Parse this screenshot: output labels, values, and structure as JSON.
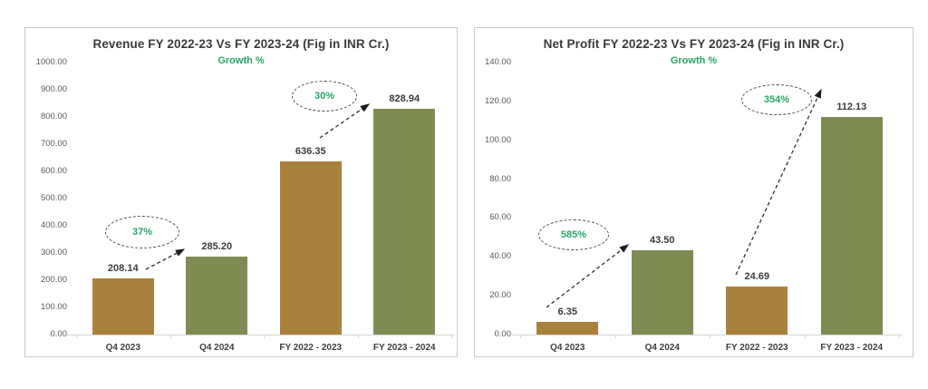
{
  "chart_data": [
    {
      "type": "bar",
      "title": "Revenue FY 2022-23 Vs FY 2023-24 (Fig in INR Cr.)",
      "legend": "Growth %",
      "legend_position": "top-center",
      "grid": false,
      "categories": [
        "Q4 2023",
        "Q4 2024",
        "FY 2022 - 2023",
        "FY 2023 - 2024"
      ],
      "values": [
        208.14,
        285.2,
        636.35,
        828.94
      ],
      "value_labels": [
        "208.14",
        "285.20",
        "636.35",
        "828.94"
      ],
      "bar_colors": [
        "#A8813E",
        "#7E8C53",
        "#A8813E",
        "#7E8C53"
      ],
      "xlabel": "",
      "ylabel": "",
      "ylim": [
        0,
        1000
      ],
      "ytick_step": 100,
      "ytick_labels": [
        "1000.00",
        "900.00",
        "800.00",
        "700.00",
        "600.00",
        "500.00",
        "400.00",
        "300.00",
        "200.00",
        "100.00",
        "0.00"
      ],
      "growth": [
        {
          "label": "37%",
          "from": "Q4 2023",
          "to": "Q4 2024"
        },
        {
          "label": "30%",
          "from": "FY 2022 - 2023",
          "to": "FY 2023 - 2024"
        }
      ]
    },
    {
      "type": "bar",
      "title": "Net Profit FY 2022-23 Vs FY 2023-24 (Fig in INR Cr.)",
      "legend": "Growth %",
      "legend_position": "top-center",
      "grid": false,
      "categories": [
        "Q4 2023",
        "Q4 2024",
        "FY 2022 - 2023",
        "FY 2023 - 2024"
      ],
      "values": [
        6.35,
        43.5,
        24.69,
        112.13
      ],
      "value_labels": [
        "6.35",
        "43.50",
        "24.69",
        "112.13"
      ],
      "bar_colors": [
        "#A8813E",
        "#7E8C53",
        "#A8813E",
        "#7E8C53"
      ],
      "xlabel": "",
      "ylabel": "",
      "ylim": [
        0,
        140
      ],
      "ytick_step": 20,
      "ytick_labels": [
        "140.00",
        "120.00",
        "100.00",
        "80.00",
        "60.00",
        "40.00",
        "20.00",
        "0.00"
      ],
      "growth": [
        {
          "label": "585%",
          "from": "Q4 2023",
          "to": "Q4 2024"
        },
        {
          "label": "354%",
          "from": "FY 2022 - 2023",
          "to": "FY 2023 - 2024"
        }
      ]
    }
  ],
  "colors": {
    "bar_previous_period": "#A8813E",
    "bar_current_period": "#7E8C53",
    "growth_green": "#27A567",
    "title_text": "#3B3B3B",
    "axis_text": "#595959",
    "panel_border": "#C9C9C9",
    "background": "#FFFFFF"
  }
}
